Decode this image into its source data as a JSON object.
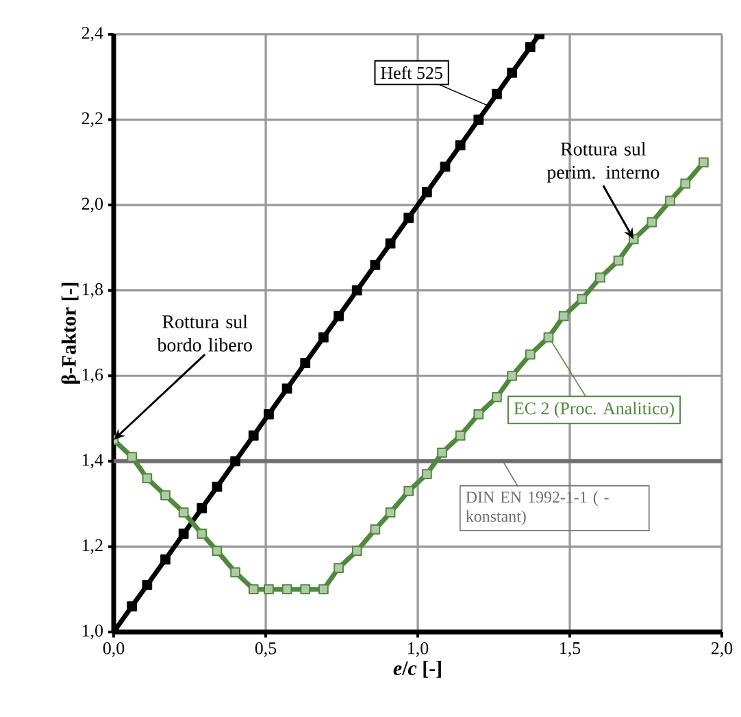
{
  "chart_data": {
    "type": "line",
    "xlabel": "*e*/*c* [-]",
    "ylabel": "β-Faktor [-]",
    "xlim": [
      0,
      2.0
    ],
    "ylim": [
      1.0,
      2.4
    ],
    "xticks": [
      {
        "value": 0,
        "label": "0,0"
      },
      {
        "value": 0.5,
        "label": "0,5"
      },
      {
        "value": 1.0,
        "label": "1,0"
      },
      {
        "value": 1.5,
        "label": "1,5"
      },
      {
        "value": 2.0,
        "label": "2,0"
      }
    ],
    "yticks": [
      {
        "value": 1.0,
        "label": "1,0"
      },
      {
        "value": 1.2,
        "label": "1,2"
      },
      {
        "value": 1.4,
        "label": "1,4"
      },
      {
        "value": 1.6,
        "label": "1,6"
      },
      {
        "value": 1.8,
        "label": "1,8"
      },
      {
        "value": 2.0,
        "label": "2,0"
      },
      {
        "value": 2.2,
        "label": "2,2"
      },
      {
        "value": 2.4,
        "label": "2,4"
      }
    ],
    "grid": true,
    "marker": "square",
    "line_style": "solid",
    "series": [
      {
        "name": "Heft 525",
        "color": "#000000",
        "x": [
          0,
          0.06,
          0.11,
          0.17,
          0.23,
          0.29,
          0.34,
          0.4,
          0.46,
          0.51,
          0.57,
          0.63,
          0.69,
          0.74,
          0.8,
          0.86,
          0.91,
          0.97,
          1.03,
          1.09,
          1.14,
          1.2,
          1.26,
          1.31,
          1.37,
          1.4
        ],
        "values": [
          1.0,
          1.06,
          1.11,
          1.17,
          1.23,
          1.29,
          1.34,
          1.4,
          1.46,
          1.51,
          1.57,
          1.63,
          1.69,
          1.74,
          1.8,
          1.86,
          1.91,
          1.97,
          2.03,
          2.09,
          2.14,
          2.2,
          2.26,
          2.31,
          2.37,
          2.4
        ]
      },
      {
        "name": "EC 2 (Proc. Analitico)",
        "color": "#4f8a3c",
        "x": [
          0,
          0.06,
          0.11,
          0.17,
          0.23,
          0.29,
          0.34,
          0.4,
          0.46,
          0.51,
          0.57,
          0.63,
          0.69,
          0.74,
          0.8,
          0.86,
          0.91,
          0.97,
          1.03,
          1.08,
          1.14,
          1.2,
          1.26,
          1.31,
          1.37,
          1.43,
          1.48,
          1.54,
          1.6,
          1.66,
          1.71,
          1.77,
          1.83,
          1.88,
          1.94
        ],
        "values": [
          1.45,
          1.41,
          1.36,
          1.32,
          1.28,
          1.23,
          1.19,
          1.14,
          1.1,
          1.1,
          1.1,
          1.1,
          1.1,
          1.15,
          1.19,
          1.24,
          1.28,
          1.33,
          1.37,
          1.42,
          1.46,
          1.51,
          1.55,
          1.6,
          1.65,
          1.69,
          1.74,
          1.78,
          1.83,
          1.87,
          1.92,
          1.96,
          2.01,
          2.05,
          2.1
        ]
      }
    ],
    "ref_lines": [
      {
        "axis": "y",
        "value": 1.4,
        "label": "DIN EN 1992-1-1 ( -konstant)",
        "color": "#6e6e6e"
      }
    ],
    "annotations": [
      {
        "text": "Rottura sul bordo libero",
        "x": 0,
        "y": 1.45
      },
      {
        "text": "Rottura sul perim. interno",
        "x": 1.71,
        "y": 1.92
      }
    ]
  }
}
